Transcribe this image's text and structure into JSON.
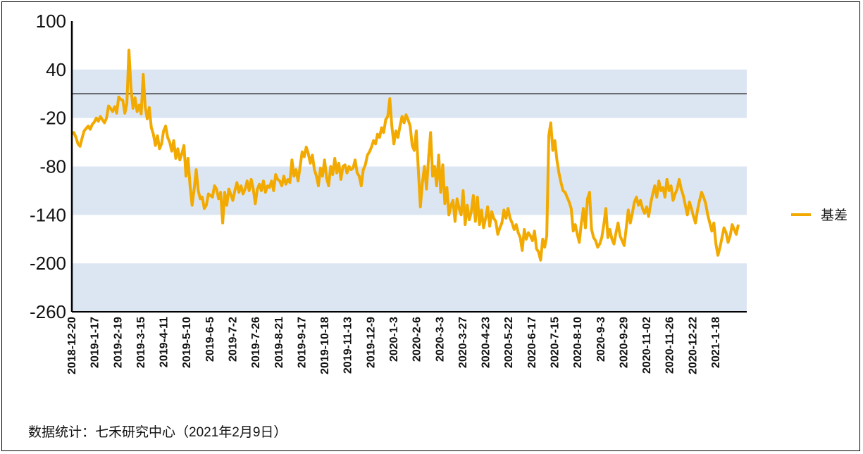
{
  "source_note": "数据统计：七禾研究中心（2021年2月9日）",
  "chart_data": {
    "type": "line",
    "title": "",
    "xlabel": "",
    "ylabel": "",
    "ylim": [
      -260,
      100
    ],
    "yticks": [
      100,
      40,
      -20,
      -80,
      -140,
      -200,
      -260
    ],
    "ytick_labels": [
      "100",
      "40",
      "-20",
      "-80",
      "-140",
      "-200",
      "-260"
    ],
    "reference_line": 10,
    "legend_position": "right",
    "colors": {
      "series": "#F2A900",
      "band": "#DCE6F2",
      "axis": "#000000",
      "ref": "#333333"
    },
    "x_tick_labels": [
      "2018-12-20",
      "2019-1-17",
      "2019-2-19",
      "2019-3-15",
      "2019-4-11",
      "2019-5-10",
      "2019-6-5",
      "2019-7-2",
      "2019-7-26",
      "2019-8-21",
      "2019-9-17",
      "2019-10-18",
      "2019-11-13",
      "2019-12-9",
      "2020-1-3",
      "2020-2-6",
      "2020-3-3",
      "2020-3-27",
      "2020-4-23",
      "2020-5-22",
      "2020-6-17",
      "2020-7-15",
      "2020-8-10",
      "2020-9-3",
      "2020-9-29",
      "2020-11-02",
      "2020-11-26",
      "2020-12-22",
      "2021-1-18"
    ],
    "series": [
      {
        "name": "基差",
        "values": [
          -40,
          -38,
          -44,
          -52,
          -55,
          -45,
          -36,
          -33,
          -30,
          -34,
          -28,
          -25,
          -20,
          -24,
          -18,
          -22,
          -26,
          -20,
          -5,
          -8,
          -12,
          -6,
          -14,
          6,
          3,
          2,
          -14,
          -2,
          64,
          17,
          -8,
          5,
          -12,
          -4,
          -15,
          34,
          -6,
          -21,
          -7,
          -32,
          -40,
          -54,
          -42,
          -58,
          -52,
          -36,
          -30,
          -44,
          -50,
          -61,
          -48,
          -70,
          -58,
          -72,
          -64,
          -54,
          -92,
          -70,
          -104,
          -128,
          -108,
          -84,
          -110,
          -120,
          -118,
          -132,
          -128,
          -114,
          -116,
          -118,
          -104,
          -108,
          -120,
          -112,
          -150,
          -112,
          -128,
          -108,
          -115,
          -122,
          -110,
          -100,
          -112,
          -104,
          -114,
          -108,
          -98,
          -110,
          -96,
          -108,
          -126,
          -108,
          -102,
          -110,
          -98,
          -112,
          -104,
          -106,
          -98,
          -110,
          -90,
          -96,
          -98,
          -104,
          -92,
          -102,
          -96,
          -100,
          -72,
          -92,
          -84,
          -98,
          -80,
          -62,
          -68,
          -56,
          -64,
          -76,
          -66,
          -84,
          -92,
          -104,
          -82,
          -92,
          -72,
          -94,
          -104,
          -80,
          -90,
          -70,
          -88,
          -76,
          -96,
          -80,
          -78,
          -88,
          -80,
          -84,
          -82,
          -72,
          -88,
          -92,
          -104,
          -84,
          -78,
          -66,
          -62,
          -56,
          -48,
          -52,
          -40,
          -44,
          -32,
          -38,
          -22,
          -18,
          4,
          -30,
          -52,
          -36,
          -44,
          -30,
          -18,
          -26,
          -16,
          -22,
          -30,
          -54,
          -60,
          -36,
          -84,
          -130,
          -100,
          -80,
          -108,
          -70,
          -38,
          -92,
          -80,
          -104,
          -66,
          -112,
          -78,
          -126,
          -106,
          -140,
          -128,
          -122,
          -148,
          -120,
          -132,
          -140,
          -110,
          -152,
          -128,
          -146,
          -136,
          -116,
          -148,
          -118,
          -152,
          -134,
          -156,
          -144,
          -130,
          -154,
          -136,
          -144,
          -148,
          -164,
          -156,
          -150,
          -134,
          -144,
          -132,
          -144,
          -150,
          -158,
          -152,
          -162,
          -168,
          -184,
          -158,
          -170,
          -162,
          -166,
          -172,
          -160,
          -182,
          -186,
          -196,
          -170,
          -180,
          -166,
          -42,
          -26,
          -60,
          -48,
          -72,
          -88,
          -100,
          -110,
          -112,
          -118,
          -124,
          -132,
          -160,
          -152,
          -164,
          -174,
          -150,
          -132,
          -156,
          -120,
          -112,
          -158,
          -168,
          -172,
          -180,
          -176,
          -168,
          -152,
          -132,
          -168,
          -158,
          -170,
          -176,
          -162,
          -150,
          -166,
          -172,
          -178,
          -156,
          -134,
          -150,
          -138,
          -124,
          -118,
          -128,
          -122,
          -132,
          -138,
          -130,
          -142,
          -126,
          -114,
          -104,
          -118,
          -98,
          -110,
          -106,
          -118,
          -96,
          -110,
          -104,
          -122,
          -114,
          -108,
          -96,
          -108,
          -116,
          -128,
          -140,
          -124,
          -132,
          -142,
          -150,
          -134,
          -122,
          -112,
          -118,
          -126,
          -140,
          -150,
          -160,
          -150,
          -176,
          -190,
          -180,
          -168,
          -156,
          -162,
          -174,
          -166,
          -152,
          -158,
          -164,
          -152
        ],
        "color": "#F2A900"
      }
    ]
  }
}
